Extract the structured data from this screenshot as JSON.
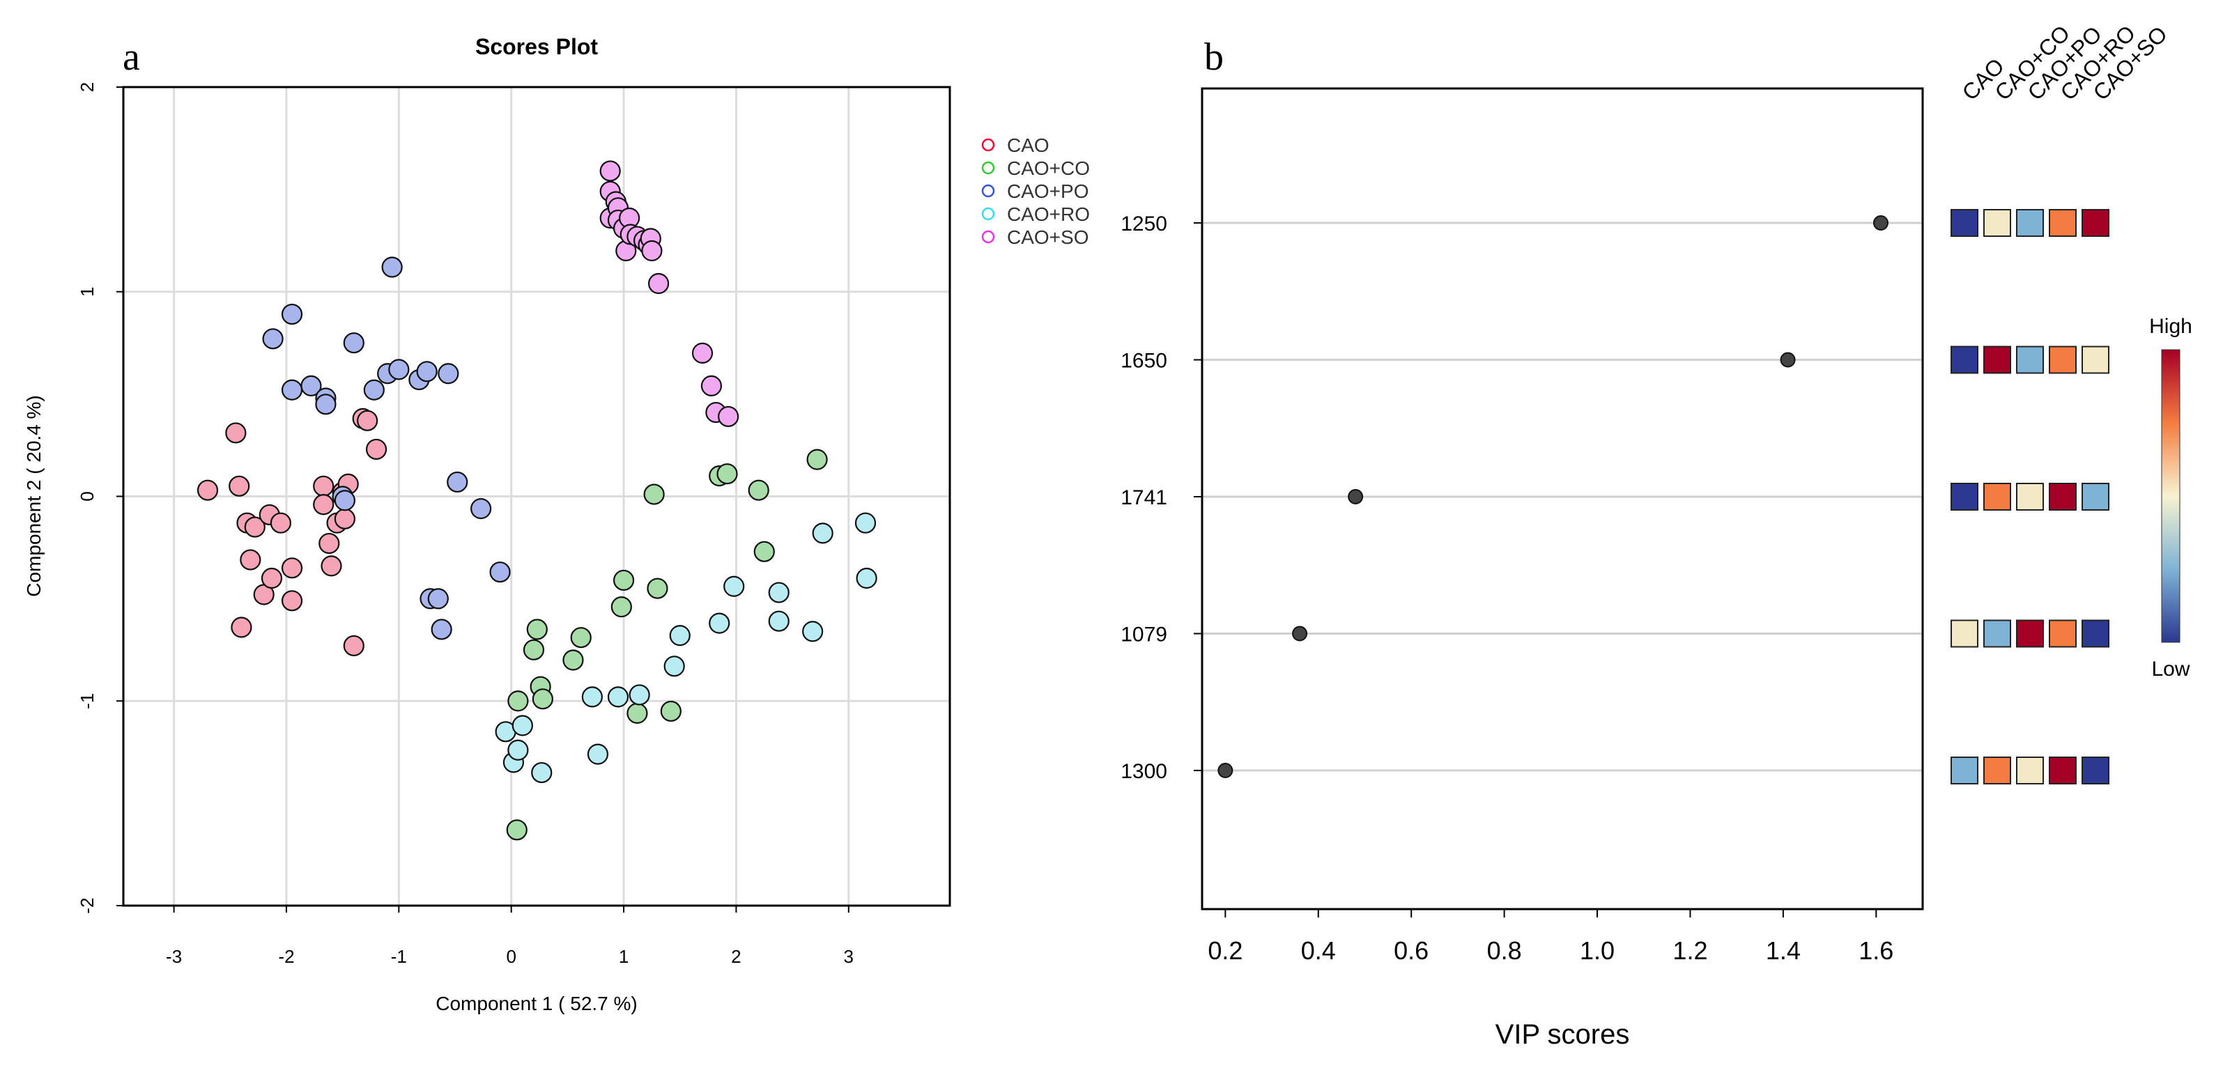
{
  "figure": {
    "panel_a_label": "a",
    "panel_b_label": "b"
  },
  "chart_data": [
    {
      "type": "scatter",
      "title": "Scores Plot",
      "xlabel": "Component 1 ( 52.7 %)",
      "ylabel": "Component 2 ( 20.4 %)",
      "xlim": [
        -3.45,
        3.9
      ],
      "ylim": [
        -2.0,
        2.0
      ],
      "xticks": [
        -3,
        -2,
        -1,
        0,
        1,
        2,
        3
      ],
      "yticks": [
        -2,
        -1,
        0,
        1,
        2
      ],
      "grid": true,
      "legend_position": "top-right-outside",
      "series": [
        {
          "name": "CAO",
          "color": "#FF0033",
          "fill": "#F4A4B4",
          "points": [
            [
              -2.7,
              0.03
            ],
            [
              -2.45,
              0.31
            ],
            [
              -2.42,
              0.05
            ],
            [
              -2.4,
              -0.64
            ],
            [
              -2.35,
              -0.13
            ],
            [
              -2.32,
              -0.31
            ],
            [
              -2.28,
              -0.15
            ],
            [
              -2.2,
              -0.48
            ],
            [
              -2.15,
              -0.09
            ],
            [
              -2.13,
              -0.4
            ],
            [
              -2.05,
              -0.13
            ],
            [
              -1.95,
              -0.35
            ],
            [
              -1.95,
              -0.51
            ],
            [
              -1.67,
              0.05
            ],
            [
              -1.67,
              -0.04
            ],
            [
              -1.62,
              -0.23
            ],
            [
              -1.6,
              -0.34
            ],
            [
              -1.55,
              -0.13
            ],
            [
              -1.5,
              0.02
            ],
            [
              -1.48,
              -0.11
            ],
            [
              -1.45,
              0.06
            ],
            [
              -1.4,
              -0.73
            ],
            [
              -1.32,
              0.38
            ],
            [
              -1.28,
              0.37
            ],
            [
              -1.2,
              0.23
            ]
          ]
        },
        {
          "name": "CAO+CO",
          "color": "#33CC33",
          "fill": "#A8DCA8",
          "points": [
            [
              0.05,
              -1.63
            ],
            [
              0.06,
              -1.0
            ],
            [
              0.2,
              -0.75
            ],
            [
              0.23,
              -0.65
            ],
            [
              0.26,
              -0.93
            ],
            [
              0.28,
              -0.99
            ],
            [
              0.55,
              -0.8
            ],
            [
              0.62,
              -0.69
            ],
            [
              0.98,
              -0.54
            ],
            [
              1.0,
              -0.41
            ],
            [
              1.12,
              -1.06
            ],
            [
              1.27,
              0.01
            ],
            [
              1.3,
              -0.45
            ],
            [
              1.42,
              -1.05
            ],
            [
              1.85,
              0.1
            ],
            [
              1.92,
              0.11
            ],
            [
              2.2,
              0.03
            ],
            [
              2.25,
              -0.27
            ],
            [
              2.72,
              0.18
            ]
          ]
        },
        {
          "name": "CAO+PO",
          "color": "#3355DD",
          "fill": "#A8B4EC",
          "points": [
            [
              -2.12,
              0.77
            ],
            [
              -1.95,
              0.89
            ],
            [
              -1.95,
              0.52
            ],
            [
              -1.78,
              0.54
            ],
            [
              -1.65,
              0.48
            ],
            [
              -1.65,
              0.45
            ],
            [
              -1.5,
              0.0
            ],
            [
              -1.48,
              -0.02
            ],
            [
              -1.4,
              0.75
            ],
            [
              -1.22,
              0.52
            ],
            [
              -1.1,
              0.6
            ],
            [
              -1.06,
              1.12
            ],
            [
              -1.0,
              0.62
            ],
            [
              -0.82,
              0.57
            ],
            [
              -0.75,
              0.61
            ],
            [
              -0.72,
              -0.5
            ],
            [
              -0.65,
              -0.5
            ],
            [
              -0.62,
              -0.65
            ],
            [
              -0.56,
              0.6
            ],
            [
              -0.48,
              0.07
            ],
            [
              -0.27,
              -0.06
            ],
            [
              -0.1,
              -0.37
            ]
          ]
        },
        {
          "name": "CAO+RO",
          "color": "#33DDEE",
          "fill": "#B8ECF2",
          "points": [
            [
              -0.05,
              -1.15
            ],
            [
              0.02,
              -1.3
            ],
            [
              0.06,
              -1.24
            ],
            [
              0.1,
              -1.12
            ],
            [
              0.27,
              -1.35
            ],
            [
              0.72,
              -0.98
            ],
            [
              0.77,
              -1.26
            ],
            [
              0.95,
              -0.98
            ],
            [
              1.14,
              -0.97
            ],
            [
              1.45,
              -0.83
            ],
            [
              1.5,
              -0.68
            ],
            [
              1.85,
              -0.62
            ],
            [
              1.98,
              -0.44
            ],
            [
              2.38,
              -0.47
            ],
            [
              2.38,
              -0.61
            ],
            [
              2.68,
              -0.66
            ],
            [
              2.77,
              -0.18
            ],
            [
              3.15,
              -0.13
            ],
            [
              3.16,
              -0.4
            ]
          ]
        },
        {
          "name": "CAO+SO",
          "color": "#EE33EE",
          "fill": "#F0A8F0",
          "points": [
            [
              0.88,
              1.59
            ],
            [
              0.88,
              1.49
            ],
            [
              0.88,
              1.36
            ],
            [
              0.93,
              1.44
            ],
            [
              0.95,
              1.41
            ],
            [
              0.95,
              1.35
            ],
            [
              1.0,
              1.31
            ],
            [
              1.02,
              1.2
            ],
            [
              1.05,
              1.36
            ],
            [
              1.06,
              1.28
            ],
            [
              1.12,
              1.27
            ],
            [
              1.18,
              1.25
            ],
            [
              1.22,
              1.23
            ],
            [
              1.24,
              1.26
            ],
            [
              1.25,
              1.2
            ],
            [
              1.31,
              1.04
            ],
            [
              1.7,
              0.7
            ],
            [
              1.78,
              0.54
            ],
            [
              1.82,
              0.41
            ],
            [
              1.93,
              0.39
            ]
          ]
        }
      ]
    },
    {
      "type": "dot",
      "xlabel": "VIP scores",
      "xlim": [
        0.15,
        1.7
      ],
      "xticks": [
        "0.2",
        "0.4",
        "0.6",
        "0.8",
        "1.0",
        "1.2",
        "1.4",
        "1.6"
      ],
      "grid": "horizontal",
      "features": [
        "1250",
        "1650",
        "1741",
        "1079",
        "1300"
      ],
      "values": [
        1.61,
        1.41,
        0.48,
        0.36,
        0.2
      ],
      "groups": [
        "CAO",
        "CAO+CO",
        "CAO+PO",
        "CAO+RO",
        "CAO+SO"
      ],
      "heat_levels": [
        [
          "low",
          "mid",
          "midlow",
          "midhigh",
          "high"
        ],
        [
          "low",
          "high",
          "midlow",
          "midhigh",
          "mid"
        ],
        [
          "low",
          "midhigh",
          "mid",
          "high",
          "midlow"
        ],
        [
          "mid",
          "midlow",
          "high",
          "midhigh",
          "low"
        ],
        [
          "midlow",
          "midhigh",
          "mid",
          "high",
          "low"
        ]
      ],
      "heat_colors": {
        "low": "#2B3990",
        "midlow": "#7FB3D5",
        "mid": "#F3E9C6",
        "midhigh": "#F47C41",
        "high": "#A50026"
      },
      "colorbar": {
        "high_label": "High",
        "low_label": "Low"
      }
    }
  ]
}
